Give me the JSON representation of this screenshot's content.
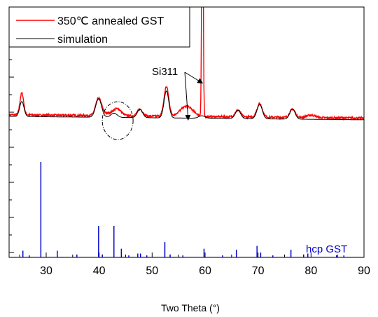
{
  "chart_data": {
    "type": "line",
    "xlabel": "Two Theta (°)",
    "ylabel": "",
    "xlim": [
      23,
      90
    ],
    "xticks": [
      30,
      40,
      50,
      60,
      70,
      80,
      90
    ],
    "grid": false,
    "legend_position": "top-left",
    "colors": {
      "measured": "#ff0000",
      "simulation": "#000000",
      "reference": "#0000cc"
    },
    "series": [
      {
        "name": "350℃ annealed GST",
        "color": "#ff0000",
        "baseline": 0.22,
        "noise": 0.012,
        "peaks": [
          {
            "x": 25.4,
            "h": 0.26,
            "w": 0.35
          },
          {
            "x": 39.9,
            "h": 0.2,
            "w": 0.55
          },
          {
            "x": 42.0,
            "h": 0.03,
            "w": 1.2
          },
          {
            "x": 43.5,
            "h": 0.07,
            "w": 0.7
          },
          {
            "x": 47.7,
            "h": 0.08,
            "w": 0.5
          },
          {
            "x": 52.7,
            "h": 0.35,
            "w": 0.45
          },
          {
            "x": 56.5,
            "h": 0.12,
            "w": 1.2
          },
          {
            "x": 59.5,
            "h": 3.6,
            "w": 0.13
          },
          {
            "x": 66.2,
            "h": 0.08,
            "w": 0.5
          },
          {
            "x": 70.3,
            "h": 0.16,
            "w": 0.5
          },
          {
            "x": 76.5,
            "h": 0.1,
            "w": 0.5
          },
          {
            "x": 80.0,
            "h": 0.03,
            "w": 0.8
          }
        ]
      },
      {
        "name": "simulation",
        "color": "#000000",
        "baseline": 0.2,
        "noise": 0,
        "peaks": [
          {
            "x": 25.4,
            "h": 0.18,
            "w": 0.4
          },
          {
            "x": 39.9,
            "h": 0.22,
            "w": 0.55
          },
          {
            "x": 42.8,
            "h": 0.05,
            "w": 0.6
          },
          {
            "x": 47.7,
            "h": 0.1,
            "w": 0.5
          },
          {
            "x": 52.7,
            "h": 0.32,
            "w": 0.45
          },
          {
            "x": 59.4,
            "h": 0.03,
            "w": 0.6
          },
          {
            "x": 66.2,
            "h": 0.1,
            "w": 0.5
          },
          {
            "x": 70.3,
            "h": 0.17,
            "w": 0.5
          },
          {
            "x": 76.5,
            "h": 0.12,
            "w": 0.5
          }
        ]
      },
      {
        "name": "hcp GST",
        "color": "#0000cc",
        "baseline": 0.0,
        "sticks": [
          {
            "x": 25.6,
            "h": 0.07
          },
          {
            "x": 26.8,
            "h": 0.02
          },
          {
            "x": 29.0,
            "h": 1.0
          },
          {
            "x": 32.1,
            "h": 0.07
          },
          {
            "x": 35.8,
            "h": 0.03
          },
          {
            "x": 39.9,
            "h": 0.33
          },
          {
            "x": 40.6,
            "h": 0.03
          },
          {
            "x": 42.8,
            "h": 0.33
          },
          {
            "x": 44.2,
            "h": 0.09
          },
          {
            "x": 45.6,
            "h": 0.02
          },
          {
            "x": 47.3,
            "h": 0.04
          },
          {
            "x": 47.8,
            "h": 0.04
          },
          {
            "x": 49.0,
            "h": 0.02
          },
          {
            "x": 52.4,
            "h": 0.16
          },
          {
            "x": 53.4,
            "h": 0.03
          },
          {
            "x": 55.8,
            "h": 0.02
          },
          {
            "x": 59.8,
            "h": 0.09
          },
          {
            "x": 63.3,
            "h": 0.02
          },
          {
            "x": 65.9,
            "h": 0.08
          },
          {
            "x": 69.8,
            "h": 0.12
          },
          {
            "x": 70.5,
            "h": 0.05
          },
          {
            "x": 72.8,
            "h": 0.02
          },
          {
            "x": 76.2,
            "h": 0.08
          },
          {
            "x": 78.6,
            "h": 0.03
          },
          {
            "x": 79.4,
            "h": 0.04
          },
          {
            "x": 84.8,
            "h": 0.02
          },
          {
            "x": 86.2,
            "h": 0.02
          }
        ]
      }
    ],
    "annotations": [
      {
        "text": "Si311",
        "points_to_x": 59.4,
        "from_x": 57.3,
        "kind": "arrow"
      },
      {
        "text": "Si311",
        "points_to_x": 56.8,
        "from_x": 54.8,
        "kind": "arrow"
      },
      {
        "text": "",
        "center_x": 43.5,
        "kind": "dashed-ellipse"
      }
    ],
    "series_labels": {
      "legend_red": "350℃ annealed GST",
      "legend_black": "simulation",
      "inline_blue": "hcp GST",
      "si_label": "Si311"
    }
  }
}
